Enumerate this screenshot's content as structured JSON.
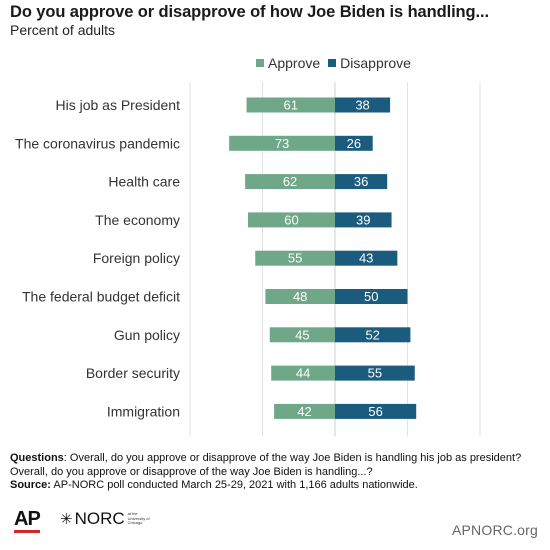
{
  "header": {
    "title": "Do you approve or disapprove of how Joe Biden is handling...",
    "subtitle": "Percent of adults"
  },
  "legend": [
    {
      "label": "Approve",
      "color": "#6fa789"
    },
    {
      "label": "Disapprove",
      "color": "#1a5b7e"
    }
  ],
  "chart_data": {
    "type": "bar",
    "orientation": "horizontal-diverging",
    "categories": [
      "His job as President",
      "The coronavirus pandemic",
      "Health care",
      "The economy",
      "Foreign policy",
      "The federal budget deficit",
      "Gun policy",
      "Border security",
      "Immigration"
    ],
    "series": [
      {
        "name": "Approve",
        "color": "#6fa789",
        "values": [
          61,
          73,
          62,
          60,
          55,
          48,
          45,
          44,
          42
        ]
      },
      {
        "name": "Disapprove",
        "color": "#1a5b7e",
        "values": [
          38,
          26,
          36,
          39,
          43,
          50,
          52,
          55,
          56
        ]
      }
    ],
    "xlim": [
      -100,
      100
    ],
    "grid": true,
    "legend_position": "top"
  },
  "footer": {
    "questions_label": "Questions",
    "questions_text": ": Overall, do you approve or disapprove of the way Joe Biden is handling his job as president? Overall, do you approve or disapprove of the way Joe Biden is handling...?",
    "source_label": "Source:",
    "source_text": " AP-NORC poll conducted March 25-29, 2021 with 1,166 adults nationwide.",
    "logo_ap": "AP",
    "logo_norc": "NORC",
    "logo_norc_sub": "at the University of Chicago",
    "website": "APNORC.org"
  }
}
